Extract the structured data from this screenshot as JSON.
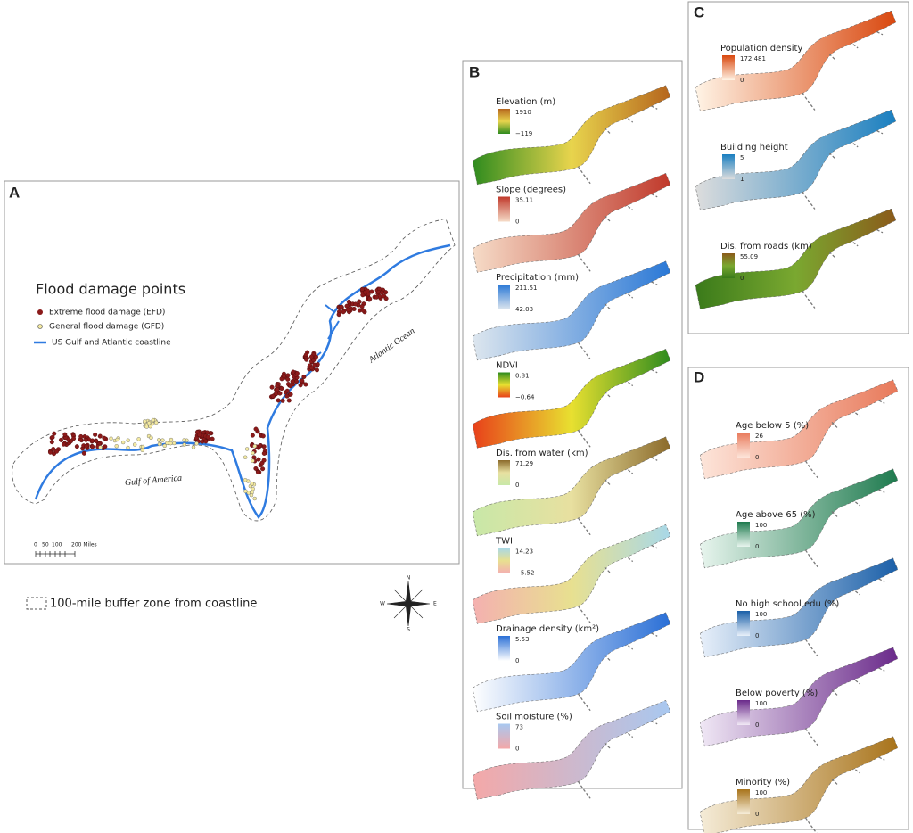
{
  "panel_a": {
    "label": "A",
    "legend": {
      "title": "Flood damage points",
      "items": [
        "Extreme flood damage (EFD)",
        "General flood damage (GFD)",
        "US Gulf and Atlantic coastline"
      ]
    },
    "ocean_labels": [
      "Atlantic Ocean",
      "Gulf of America"
    ],
    "scale_bar": [
      "0",
      "50",
      "100",
      "200 Miles"
    ]
  },
  "buffer_legend": "100-mile buffer zone from coastline",
  "compass": {
    "n": "N",
    "e": "E",
    "s": "S",
    "w": "W"
  },
  "panel_b": {
    "label": "B",
    "layers": [
      {
        "title": "Elevation (m)",
        "max": "1910",
        "min": "−119"
      },
      {
        "title": "Slope (degrees)",
        "max": "35.11",
        "min": "0"
      },
      {
        "title": "Precipitation (mm)",
        "max": "211.51",
        "min": "42.03"
      },
      {
        "title": "NDVI",
        "max": "0.81",
        "min": "−0.64"
      },
      {
        "title": "Dis. from water (km)",
        "max": "71.29",
        "min": "0"
      },
      {
        "title": "TWI",
        "max": "14.23",
        "min": "−5.52"
      },
      {
        "title": "Drainage density (km²)",
        "max": "5.53",
        "min": "0"
      },
      {
        "title": "Soil moisture (%)",
        "max": "73",
        "min": "0"
      }
    ]
  },
  "panel_c": {
    "label": "C",
    "layers": [
      {
        "title": "Population density",
        "max": "172,481",
        "min": "0"
      },
      {
        "title": "Building height",
        "max": "5",
        "min": "1"
      },
      {
        "title": "Dis. from roads (km)",
        "max": "55.09",
        "min": "0"
      }
    ]
  },
  "panel_d": {
    "label": "D",
    "layers": [
      {
        "title": "Age below 5 (%)",
        "max": "26",
        "min": "0"
      },
      {
        "title": "Age above 65 (%)",
        "max": "100",
        "min": "0"
      },
      {
        "title": "No high school edu (%)",
        "max": "100",
        "min": "0"
      },
      {
        "title": "Below poverty (%)",
        "max": "100",
        "min": "0"
      },
      {
        "title": "Minority (%)",
        "max": "100",
        "min": "0"
      }
    ]
  }
}
